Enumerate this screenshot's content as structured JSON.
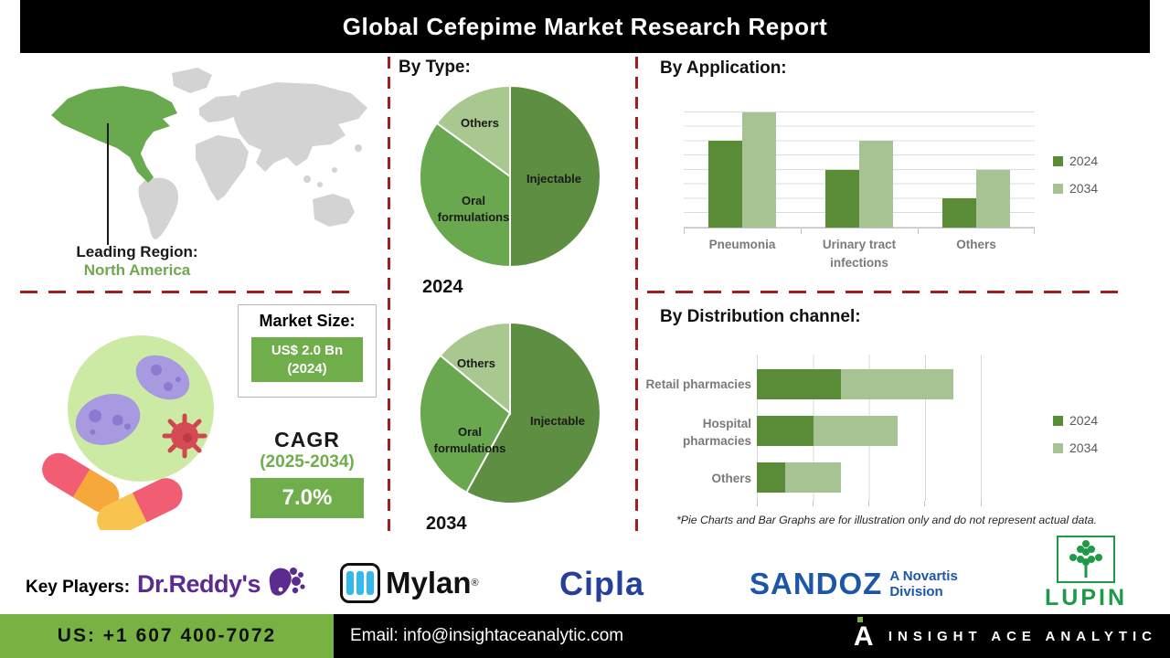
{
  "header": {
    "title": "Global Cefepime Market Research Report"
  },
  "colors": {
    "accent_green": "#6fae4b",
    "footer_green": "#77b243",
    "divider_red": "#a21d1d",
    "map_gray": "#d3d3d3",
    "map_highlight": "#6aaa4f",
    "series_2024": "#5a8c38",
    "series_2034": "#a6c493",
    "pie_injectable": "#5d8e41",
    "pie_oral": "#6aa84f",
    "pie_others": "#a9c88f"
  },
  "leading_region": {
    "label": "Leading Region:",
    "value": "North America"
  },
  "market_size": {
    "label": "Market Size:",
    "value": "US$ 2.0 Bn",
    "year": "(2024)"
  },
  "cagr": {
    "label": "CAGR",
    "period": "(2025-2034)",
    "value": "7.0%"
  },
  "by_type": {
    "heading": "By Type:",
    "pie_years": [
      "2024",
      "2034"
    ]
  },
  "by_application": {
    "heading": "By Application:"
  },
  "by_distribution": {
    "heading": "By Distribution channel:"
  },
  "footnote": "*Pie Charts and Bar Graphs are for illustration only and do not represent actual data.",
  "key_players": {
    "label": "Key Players:",
    "players": [
      "Dr.Reddy's",
      "Mylan",
      "Cipla",
      "SANDOZ",
      "LUPIN"
    ],
    "sandoz_sub1": "A Novartis",
    "sandoz_sub2": "Division",
    "mylan_reg": "®"
  },
  "footer": {
    "phone": "US: +1 607 400-7072",
    "email": "Email: info@insightaceanalytic.com",
    "brand": "INSIGHT ACE ANALYTIC",
    "brand_glyph": "A"
  },
  "chart_data": [
    {
      "type": "pie",
      "title": "By Type: 2024",
      "labels": [
        "Injectable",
        "Oral formulations",
        "Others"
      ],
      "values": [
        50,
        35,
        15
      ],
      "unit": "% (illustrative)",
      "colors": [
        "#5d8e41",
        "#6aa84f",
        "#a9c88f"
      ],
      "start_angle": "12-o-clock, clockwise"
    },
    {
      "type": "pie",
      "title": "By Type: 2034",
      "labels": [
        "Injectable",
        "Oral formulations",
        "Others"
      ],
      "values": [
        58,
        28,
        14
      ],
      "unit": "% (illustrative)",
      "colors": [
        "#5d8e41",
        "#6aa84f",
        "#a9c88f"
      ],
      "start_angle": "12-o-clock, clockwise"
    },
    {
      "type": "bar",
      "title": "By Application",
      "categories": [
        "Pneumonia",
        "Urinary tract infections",
        "Others"
      ],
      "categories_display": [
        [
          "Pneumonia"
        ],
        [
          "Urinary tract",
          "infections"
        ],
        [
          "Others"
        ]
      ],
      "series": [
        {
          "name": "2024",
          "values": [
            6,
            4,
            2
          ]
        },
        {
          "name": "2034",
          "values": [
            8,
            6,
            4
          ]
        }
      ],
      "colors": [
        "#5a8c38",
        "#a6c493"
      ],
      "ylim": [
        0,
        9
      ],
      "grid": true,
      "legend_position": "right",
      "note": "illustrative, no numeric axis labels shown"
    },
    {
      "type": "bar",
      "subtype": "horizontal-stacked",
      "title": "By Distribution channel",
      "categories": [
        "Retail pharmacies",
        "Hospital pharmacies",
        "Others"
      ],
      "categories_display": [
        [
          "Retail pharmacies"
        ],
        [
          "Hospital",
          "pharmacies"
        ],
        [
          "Others"
        ]
      ],
      "series": [
        {
          "name": "2024",
          "values": [
            1.5,
            1.0,
            0.5
          ]
        },
        {
          "name": "2034",
          "values": [
            2.0,
            1.5,
            1.0
          ]
        }
      ],
      "colors": [
        "#5a8c38",
        "#a6c493"
      ],
      "xlim": [
        0,
        4
      ],
      "grid": true,
      "legend_position": "right",
      "note": "illustrative, no numeric axis labels shown"
    }
  ]
}
